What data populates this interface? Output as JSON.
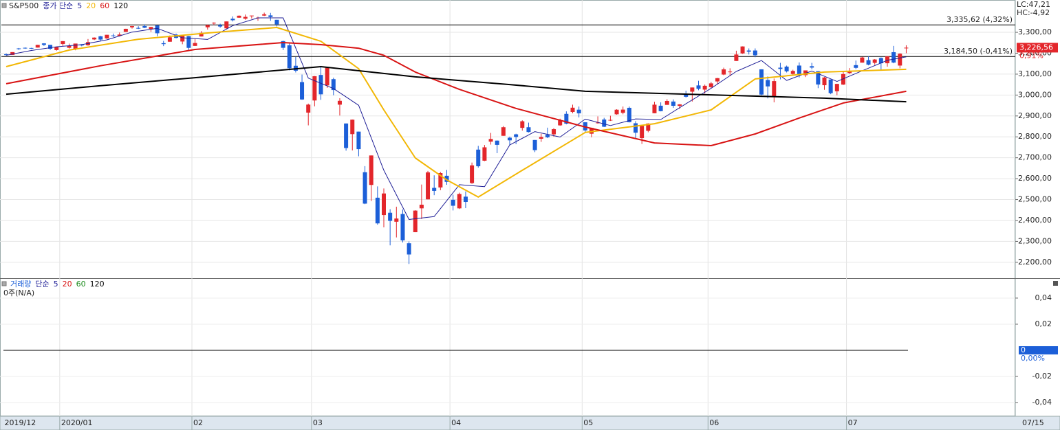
{
  "chart_data": [
    {
      "type": "candlestick",
      "title": "S&P500",
      "ma_label": "종가 단순",
      "lc_label": "LC:47,21",
      "hc_label": "HC:-4,92",
      "last_date_label": "07/15",
      "up_color": "#e3262b",
      "down_color": "#1c5fd8",
      "grid": true,
      "categories": [
        "2019/12",
        null,
        null,
        null,
        null,
        null,
        null,
        null,
        null,
        "2020/01",
        null,
        null,
        null,
        null,
        null,
        null,
        null,
        null,
        null,
        null,
        null,
        null,
        null,
        null,
        null,
        null,
        null,
        null,
        null,
        null,
        "02",
        null,
        null,
        null,
        null,
        null,
        null,
        null,
        null,
        null,
        null,
        null,
        null,
        null,
        null,
        null,
        null,
        null,
        null,
        "03",
        null,
        null,
        null,
        null,
        null,
        null,
        null,
        null,
        null,
        null,
        null,
        null,
        null,
        null,
        null,
        null,
        null,
        null,
        null,
        null,
        null,
        "04",
        null,
        null,
        null,
        null,
        null,
        null,
        null,
        null,
        null,
        null,
        null,
        null,
        null,
        null,
        null,
        null,
        null,
        null,
        null,
        null,
        "05",
        null,
        null,
        null,
        null,
        null,
        null,
        null,
        null,
        null,
        null,
        null,
        null,
        null,
        null,
        null,
        null,
        null,
        null,
        null,
        "06",
        null,
        null,
        null,
        null,
        null,
        null,
        null,
        null,
        null,
        null,
        null,
        null,
        null,
        null,
        null,
        null,
        null,
        null,
        null,
        null,
        null,
        "07",
        null,
        null,
        null,
        null,
        null,
        null,
        null,
        null,
        null
      ],
      "open": [
        3195,
        3192,
        3223,
        3226,
        3225,
        3227,
        3247,
        3240,
        3215,
        3244,
        3226,
        3218,
        3242,
        3238,
        3266,
        3281,
        3271,
        3285,
        3283,
        3302,
        3324,
        3321,
        3330,
        3316,
        3333,
        3248,
        3255,
        3289,
        3256,
        3282,
        3235,
        3280,
        3324,
        3345,
        3335,
        3319,
        3365,
        3370,
        3365,
        3378,
        3369,
        3380,
        3381,
        3360,
        3258,
        3238,
        3140,
        3062,
        2916,
        2974,
        3096,
        3046,
        3076,
        2954,
        2864,
        2813,
        2825,
        2631,
        2570,
        2509,
        2426,
        2437,
        2394,
        2431,
        2291,
        2344,
        2458,
        2501,
        2556,
        2558,
        2614,
        2499,
        2458,
        2514,
        2579,
        2739,
        2686,
        2777,
        2782,
        2805,
        2796,
        2812,
        2843,
        2846,
        2785,
        2791,
        2810,
        2812,
        2855,
        2910,
        2919,
        2930,
        2870,
        2815,
        2868,
        2883,
        2879,
        2908,
        2915,
        2939,
        2865,
        2794,
        2829,
        2913,
        2949,
        2953,
        2969,
        2948,
        3004,
        3016,
        3046,
        3026,
        3038,
        3065,
        3098,
        3112,
        3163,
        3199,
        3213,
        3213,
        3123,
        3072,
        2994,
        3131,
        3136,
        3101,
        3141,
        3095,
        3138,
        3114,
        3047,
        3074,
        3018,
        3050,
        3105,
        3143,
        3155,
        3167,
        3154,
        3177,
        3152,
        3205,
        3141,
        3226
      ],
      "high": [
        3199,
        3205,
        3225,
        3228,
        3226,
        3240,
        3248,
        3240,
        3231,
        3258,
        3246,
        3246,
        3244,
        3268,
        3276,
        3283,
        3288,
        3294,
        3299,
        3317,
        3330,
        3329,
        3338,
        3326,
        3334,
        3259,
        3285,
        3294,
        3286,
        3283,
        3268,
        3306,
        3337,
        3348,
        3341,
        3352,
        3376,
        3381,
        3385,
        3380,
        3375,
        3394,
        3393,
        3360,
        3260,
        3247,
        3182,
        3098,
        2959,
        3091,
        3137,
        3130,
        3083,
        2985,
        2864,
        2883,
        2825,
        2660,
        2711,
        2563,
        2553,
        2454,
        2466,
        2453,
        2300,
        2449,
        2572,
        2637,
        2616,
        2632,
        2642,
        2523,
        2533,
        2539,
        2677,
        2757,
        2761,
        2819,
        2783,
        2852,
        2801,
        2815,
        2879,
        2868,
        2785,
        2815,
        2844,
        2842,
        2887,
        2922,
        2954,
        2945,
        2870,
        2844,
        2898,
        2891,
        2901,
        2932,
        2945,
        2945,
        2875,
        2852,
        2865,
        2968,
        2965,
        2980,
        2979,
        2957,
        3021,
        3036,
        3068,
        3050,
        3063,
        3082,
        3131,
        3128,
        3212,
        3233,
        3223,
        3223,
        3123,
        3089,
        3079,
        3154,
        3141,
        3121,
        3156,
        3117,
        3154,
        3115,
        3086,
        3074,
        3054,
        3112,
        3129,
        3165,
        3183,
        3185,
        3172,
        3180,
        3186,
        3235,
        3200,
        3238
      ],
      "low": [
        3189,
        3192,
        3216,
        3221,
        3220,
        3227,
        3235,
        3216,
        3212,
        3235,
        3222,
        3214,
        3233,
        3236,
        3263,
        3260,
        3268,
        3277,
        3280,
        3302,
        3318,
        3316,
        3320,
        3302,
        3281,
        3234,
        3255,
        3271,
        3243,
        3214,
        3235,
        3280,
        3313,
        3335,
        3322,
        3317,
        3352,
        3369,
        3360,
        3366,
        3355,
        3378,
        3355,
        3328,
        3215,
        3118,
        3108,
        2977,
        2855,
        2946,
        2977,
        3034,
        2999,
        2902,
        2734,
        2735,
        2707,
        2478,
        2493,
        2380,
        2367,
        2281,
        2319,
        2295,
        2192,
        2344,
        2407,
        2501,
        2521,
        2545,
        2571,
        2448,
        2455,
        2459,
        2575,
        2653,
        2684,
        2763,
        2722,
        2805,
        2761,
        2765,
        2830,
        2821,
        2727,
        2776,
        2794,
        2801,
        2853,
        2860,
        2913,
        2893,
        2822,
        2798,
        2863,
        2847,
        2876,
        2906,
        2908,
        2869,
        2794,
        2766,
        2822,
        2913,
        2922,
        2953,
        2939,
        2934,
        2988,
        2969,
        3023,
        3007,
        3032,
        3052,
        3095,
        3090,
        3163,
        3197,
        3194,
        3181,
        2999,
        2984,
        2965,
        3075,
        3108,
        3094,
        3084,
        3086,
        3123,
        3033,
        3025,
        3004,
        2999,
        3048,
        3101,
        3124,
        3155,
        3142,
        3145,
        3116,
        3136,
        3152,
        3128,
        3200
      ],
      "close": [
        3191.14,
        3205.37,
        3221.22,
        3224.01,
        3223.38,
        3239.91,
        3240.02,
        3221.29,
        3230.78,
        3257.85,
        3234.85,
        3246.28,
        3237.18,
        3253.05,
        3274.7,
        3265.35,
        3288.13,
        3283.15,
        3289.29,
        3316.81,
        3329.62,
        3320.79,
        3321.75,
        3325.54,
        3295.47,
        3243.63,
        3276.24,
        3273.4,
        3283.66,
        3225.52,
        3248.92,
        3297.59,
        3334.69,
        3345.78,
        3327.71,
        3352.09,
        3357.75,
        3379.45,
        3373.94,
        3380.16,
        3370.29,
        3386.15,
        3373.23,
        3337.75,
        3225.89,
        3128.21,
        3116.39,
        2978.76,
        2954.22,
        3090.23,
        3003.37,
        3130.12,
        3023.94,
        2972.37,
        2746.56,
        2882.23,
        2741.38,
        2480.64,
        2711.02,
        2386.13,
        2529.19,
        2398.1,
        2409.39,
        2304.92,
        2237.4,
        2447.33,
        2475.56,
        2630.07,
        2541.47,
        2626.65,
        2584.59,
        2470.5,
        2526.9,
        2488.65,
        2663.68,
        2659.41,
        2749.98,
        2789.82,
        2761.63,
        2846.06,
        2783.36,
        2799.55,
        2874.56,
        2823.16,
        2736.56,
        2799.31,
        2797.8,
        2836.74,
        2878.48,
        2863.39,
        2939.51,
        2912.43,
        2830.71,
        2842.74,
        2868.44,
        2848.42,
        2881.19,
        2929.8,
        2930.32,
        2870.12,
        2820.0,
        2852.5,
        2863.7,
        2953.91,
        2922.94,
        2971.61,
        2948.51,
        2955.45,
        2991.77,
        3036.13,
        3029.73,
        3044.31,
        3055.73,
        3080.82,
        3122.87,
        3112.35,
        3193.93,
        3232.39,
        3207.18,
        3190.14,
        3002.1,
        3041.31,
        3066.59,
        3124.74,
        3113.49,
        3115.34,
        3097.74,
        3117.86,
        3131.29,
        3050.33,
        3083.76,
        3009.05,
        3053.24,
        3100.29,
        3115.86,
        3130.01,
        3179.72,
        3145.32,
        3169.94,
        3152.05,
        3185.04,
        3155.22,
        3197.52,
        3226.56
      ],
      "series": [
        {
          "name": "5",
          "color": "#1e1e96",
          "x": [
            0,
            4,
            8,
            12,
            16,
            20,
            24,
            28,
            32,
            36,
            40,
            44,
            48,
            52,
            56,
            60,
            64,
            68,
            72,
            76,
            80,
            84,
            88,
            92,
            96,
            100,
            104,
            108,
            112,
            116,
            120,
            124,
            128,
            132,
            136,
            140,
            143
          ],
          "values": [
            3190,
            3213,
            3231,
            3241,
            3264,
            3301,
            3319,
            3274,
            3266,
            3332,
            3369,
            3369,
            3081,
            3031,
            2951,
            2640,
            2405,
            2419,
            2571,
            2562,
            2761,
            2825,
            2799,
            2885,
            2854,
            2886,
            2883,
            2958,
            3032,
            3113,
            3165,
            3070,
            3115,
            3065,
            3116,
            3166,
            3183
          ]
        },
        {
          "name": "20",
          "color": "#f2b705",
          "x": [
            0,
            10,
            21,
            32,
            43,
            50,
            56,
            60,
            65,
            70,
            75,
            82,
            92,
            103,
            112,
            119,
            130,
            143
          ],
          "values": [
            3136,
            3215,
            3267,
            3297,
            3323,
            3257,
            3126,
            2929,
            2699,
            2594,
            2512,
            2640,
            2821,
            2863,
            2929,
            3077,
            3110,
            3123
          ]
        },
        {
          "name": "60",
          "color": "#d81414",
          "x": [
            0,
            15,
            30,
            44,
            50,
            56,
            60,
            65,
            72,
            81,
            92,
            103,
            112,
            119,
            126,
            133,
            143
          ],
          "values": [
            3054,
            3140,
            3218,
            3251,
            3241,
            3224,
            3190,
            3110,
            3027,
            2936,
            2847,
            2771,
            2758,
            2814,
            2890,
            2962,
            3018
          ]
        },
        {
          "name": "120",
          "color": "#000000",
          "x": [
            0,
            15,
            30,
            50,
            65,
            80,
            92,
            112,
            130,
            143
          ],
          "values": [
            3004,
            3045,
            3083,
            3136,
            3087,
            3050,
            3018,
            3001,
            2985,
            2968
          ]
        }
      ],
      "levels": [
        {
          "value": 3335.62,
          "label": "3,335,62 (4,32%)"
        },
        {
          "value": 3184.5,
          "label": "3,184,50 (-0,41%)"
        }
      ],
      "last_price": {
        "value": 3226.56,
        "label": "3,226,56",
        "change": "0,91%"
      },
      "ylim": [
        2124,
        3448
      ],
      "yticks": [
        {
          "value": 2200,
          "label": "2,200,00"
        },
        {
          "value": 2300,
          "label": "2,300,00"
        },
        {
          "value": 2400,
          "label": "2,400,00"
        },
        {
          "value": 2500,
          "label": "2,500,00"
        },
        {
          "value": 2600,
          "label": "2,600,00"
        },
        {
          "value": 2700,
          "label": "2,700,00"
        },
        {
          "value": 2800,
          "label": "2,800,00"
        },
        {
          "value": 2900,
          "label": "2,900,00"
        },
        {
          "value": 3000,
          "label": "3,000,00"
        },
        {
          "value": 3100,
          "label": "3,100,00"
        },
        {
          "value": 3200,
          "label": "3,200,00"
        },
        {
          "value": 3300,
          "label": "3,300,00"
        }
      ]
    },
    {
      "type": "bar",
      "title": "거래량",
      "ma_label": "단순",
      "note": "0주(N/A)",
      "series": [
        {
          "name": "5",
          "color": "#1e1e96"
        },
        {
          "name": "20",
          "color": "#d81414"
        },
        {
          "name": "60",
          "color": "#1a8a1a"
        },
        {
          "name": "120",
          "color": "#000000"
        }
      ],
      "zero_line": {
        "value": 0,
        "label": "0",
        "change": "0,00%"
      },
      "ylim": [
        -0.0505,
        0.0547
      ],
      "yticks": [
        {
          "value": 0.04,
          "label": "0,04"
        },
        {
          "value": 0.02,
          "label": "0,02"
        },
        {
          "value": -0.02,
          "label": "-0,02"
        },
        {
          "value": -0.04,
          "label": "-0,04"
        }
      ]
    }
  ]
}
